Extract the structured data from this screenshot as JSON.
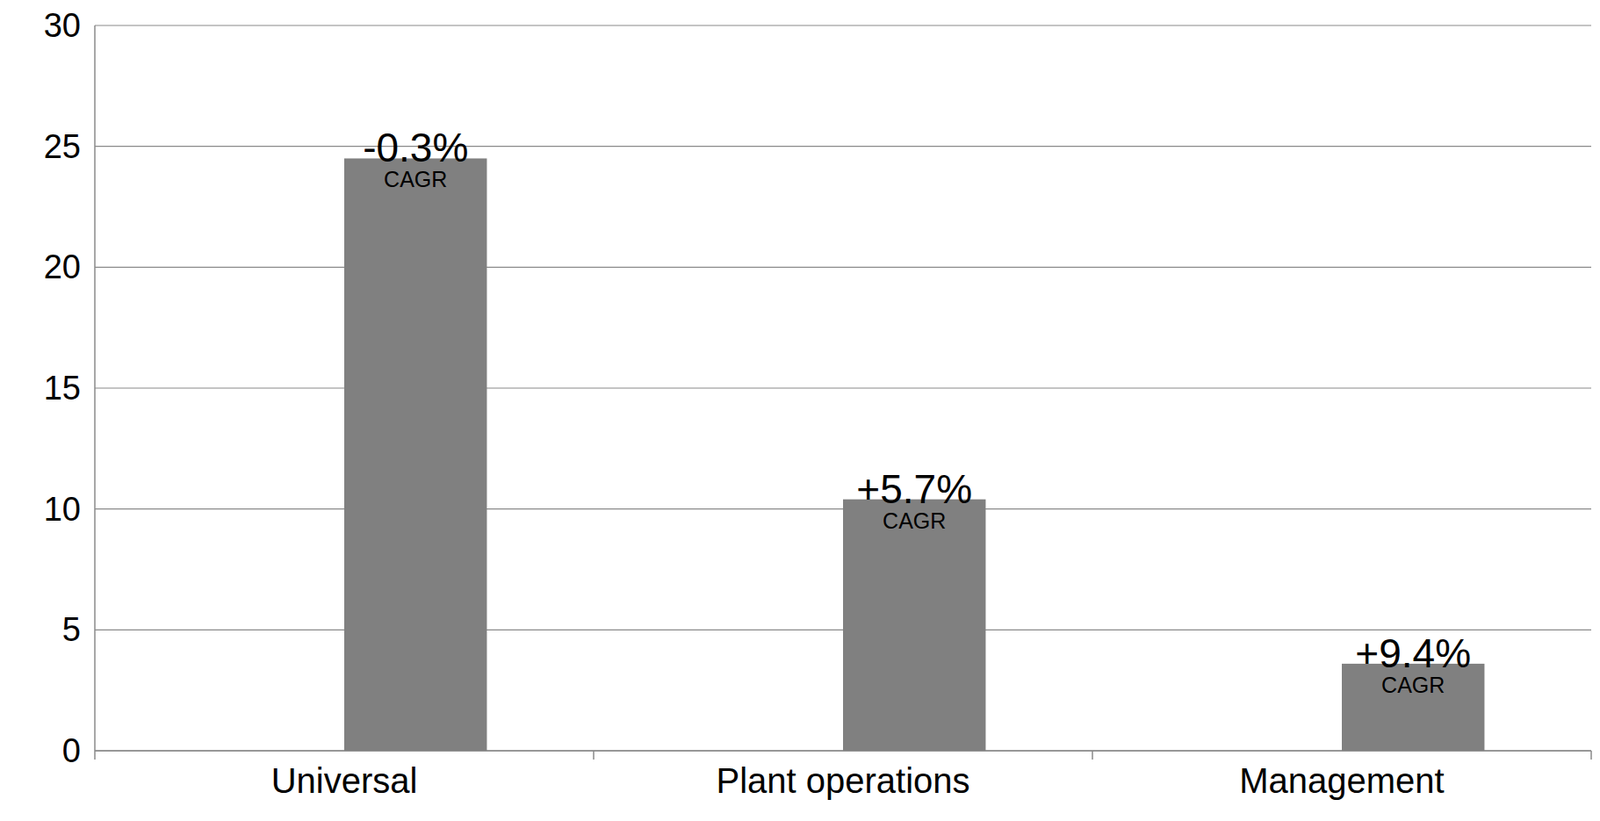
{
  "chart_data": {
    "type": "bar",
    "categories": [
      "Universal",
      "Plant operations",
      "Management"
    ],
    "values": [
      24.5,
      10.4,
      3.6
    ],
    "color": "#808080",
    "ylim": [
      0,
      30
    ],
    "yticks": [
      0,
      5,
      10,
      15,
      20,
      25,
      30
    ],
    "grid": true,
    "annotations": [
      {
        "text": "-0.3%",
        "note": "CAGR"
      },
      {
        "text": "+5.7%",
        "note": "CAGR"
      },
      {
        "text": "+9.4%",
        "note": "CAGR"
      }
    ]
  }
}
